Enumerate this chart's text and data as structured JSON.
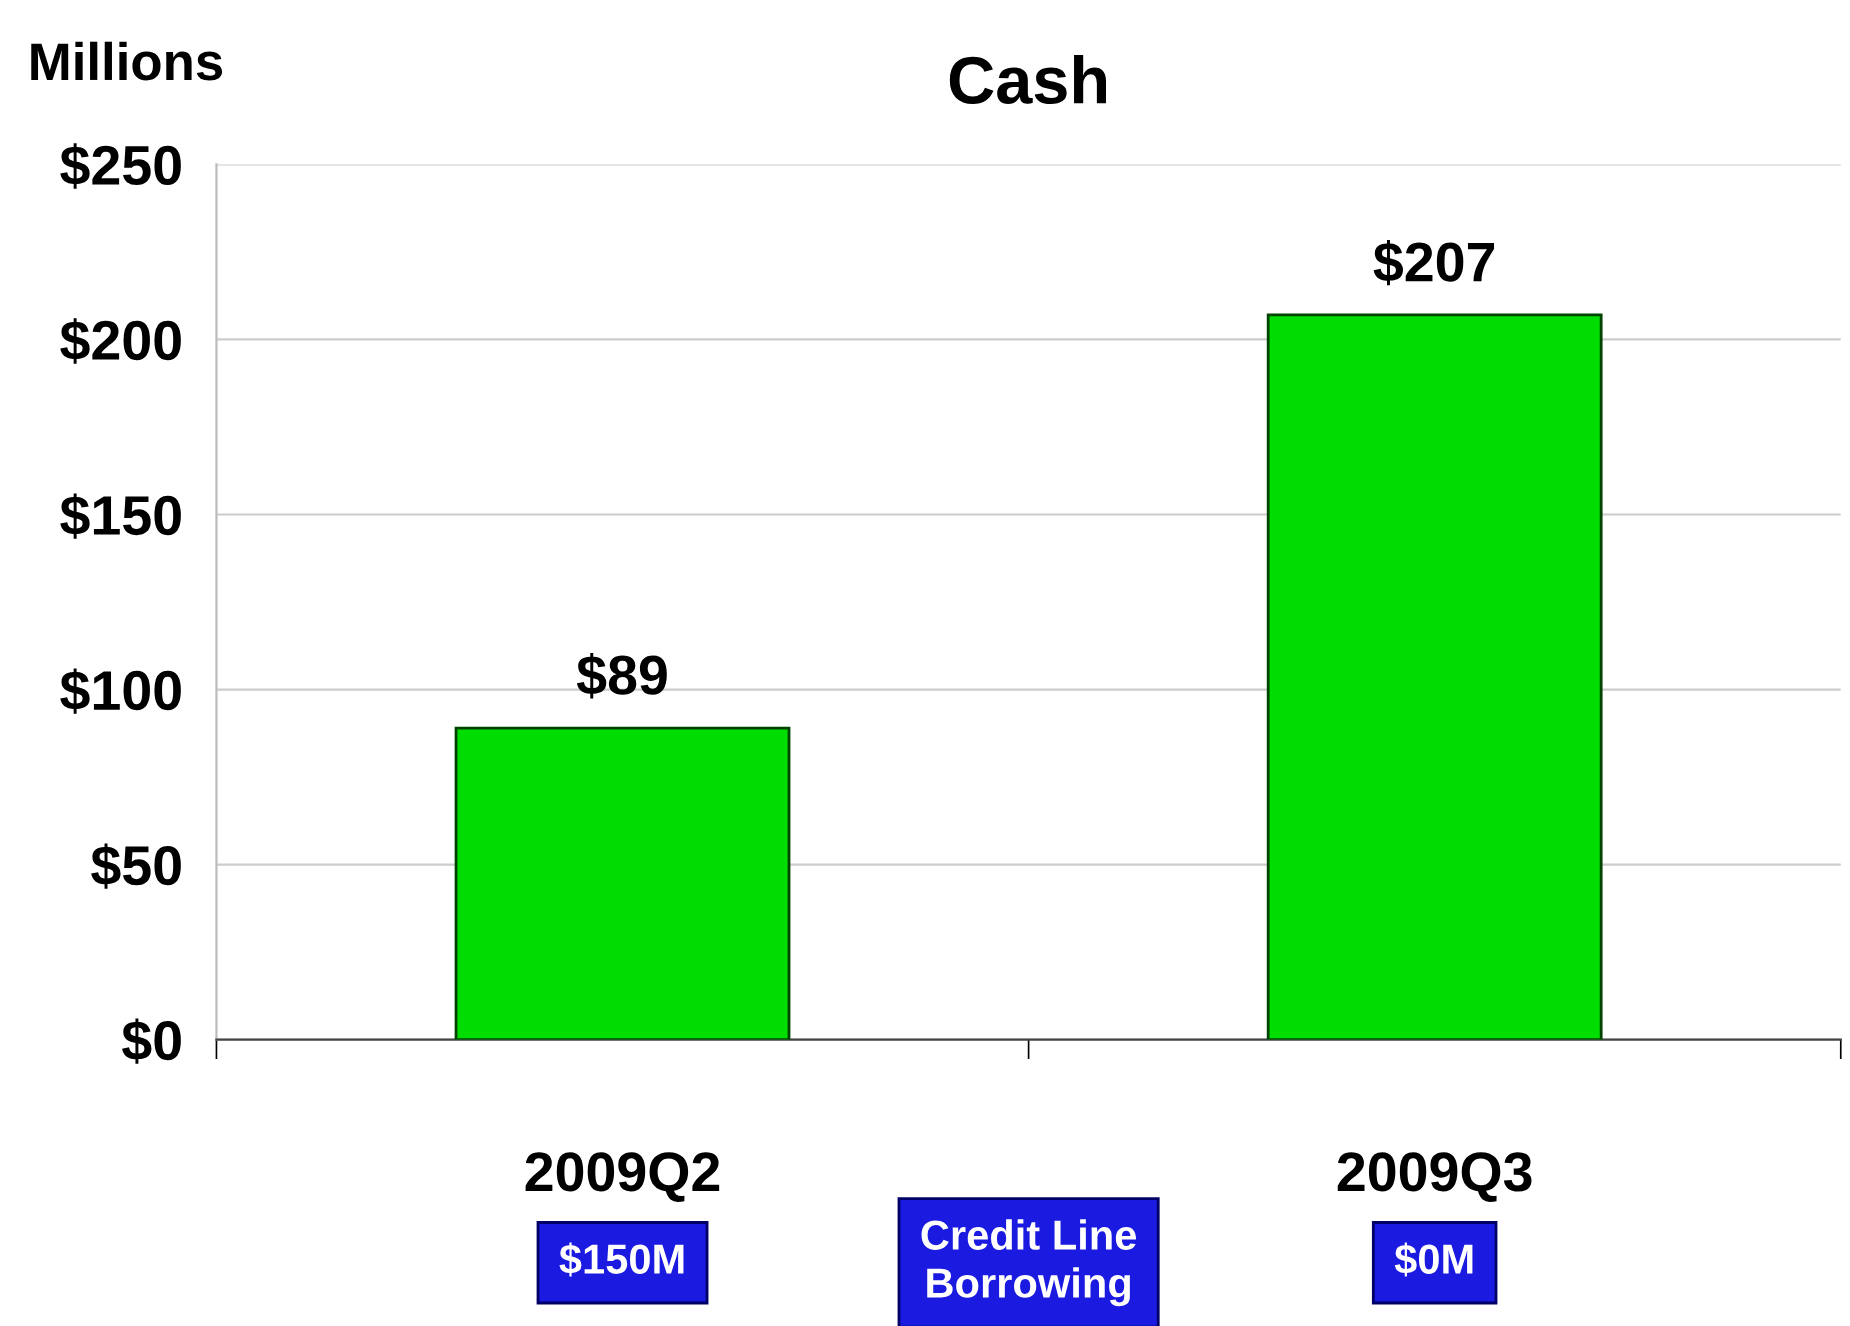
{
  "chart_data": {
    "type": "bar",
    "title": "Cash",
    "ylabel": "Millions",
    "categories": [
      "2009Q2",
      "2009Q3"
    ],
    "values": [
      89,
      207
    ],
    "value_labels": [
      "$89",
      "$207"
    ],
    "color": "#00dd00",
    "ylim": [
      0,
      250
    ],
    "yticks": [
      {
        "value": 0,
        "label": "$0"
      },
      {
        "value": 50,
        "label": "$50"
      },
      {
        "value": 100,
        "label": "$100"
      },
      {
        "value": 150,
        "label": "$150"
      },
      {
        "value": 200,
        "label": "$200"
      },
      {
        "value": 250,
        "label": "$250"
      }
    ],
    "grid": "y",
    "legend": false,
    "annotations": [
      "$150M",
      "Credit Line\nBorrowing",
      "$0M"
    ]
  }
}
